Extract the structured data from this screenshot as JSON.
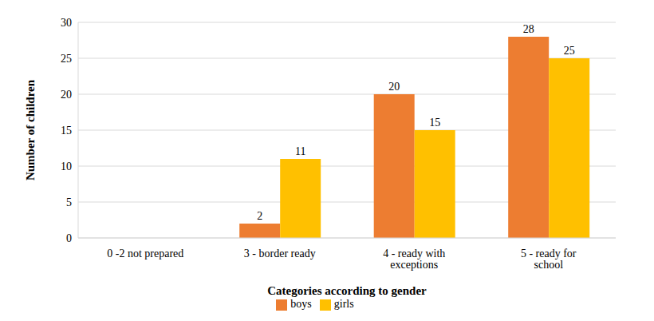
{
  "chart_data": {
    "type": "bar",
    "categories": [
      "0 -2 not prepared",
      "3 - border ready",
      "4 - ready with exceptions",
      "5 - ready for school"
    ],
    "series": [
      {
        "name": "boys",
        "color": "#ED7D31",
        "values": [
          0,
          2,
          20,
          28
        ]
      },
      {
        "name": "girls",
        "color": "#FFC000",
        "values": [
          0,
          11,
          15,
          25
        ]
      }
    ],
    "xlabel": "Categories according to gender",
    "ylabel": "Number of children",
    "ylim": [
      0,
      30
    ],
    "yticks": [
      0,
      5,
      10,
      15,
      20,
      25,
      30
    ],
    "grid": true,
    "legend": "bottom",
    "data_labels": true
  }
}
